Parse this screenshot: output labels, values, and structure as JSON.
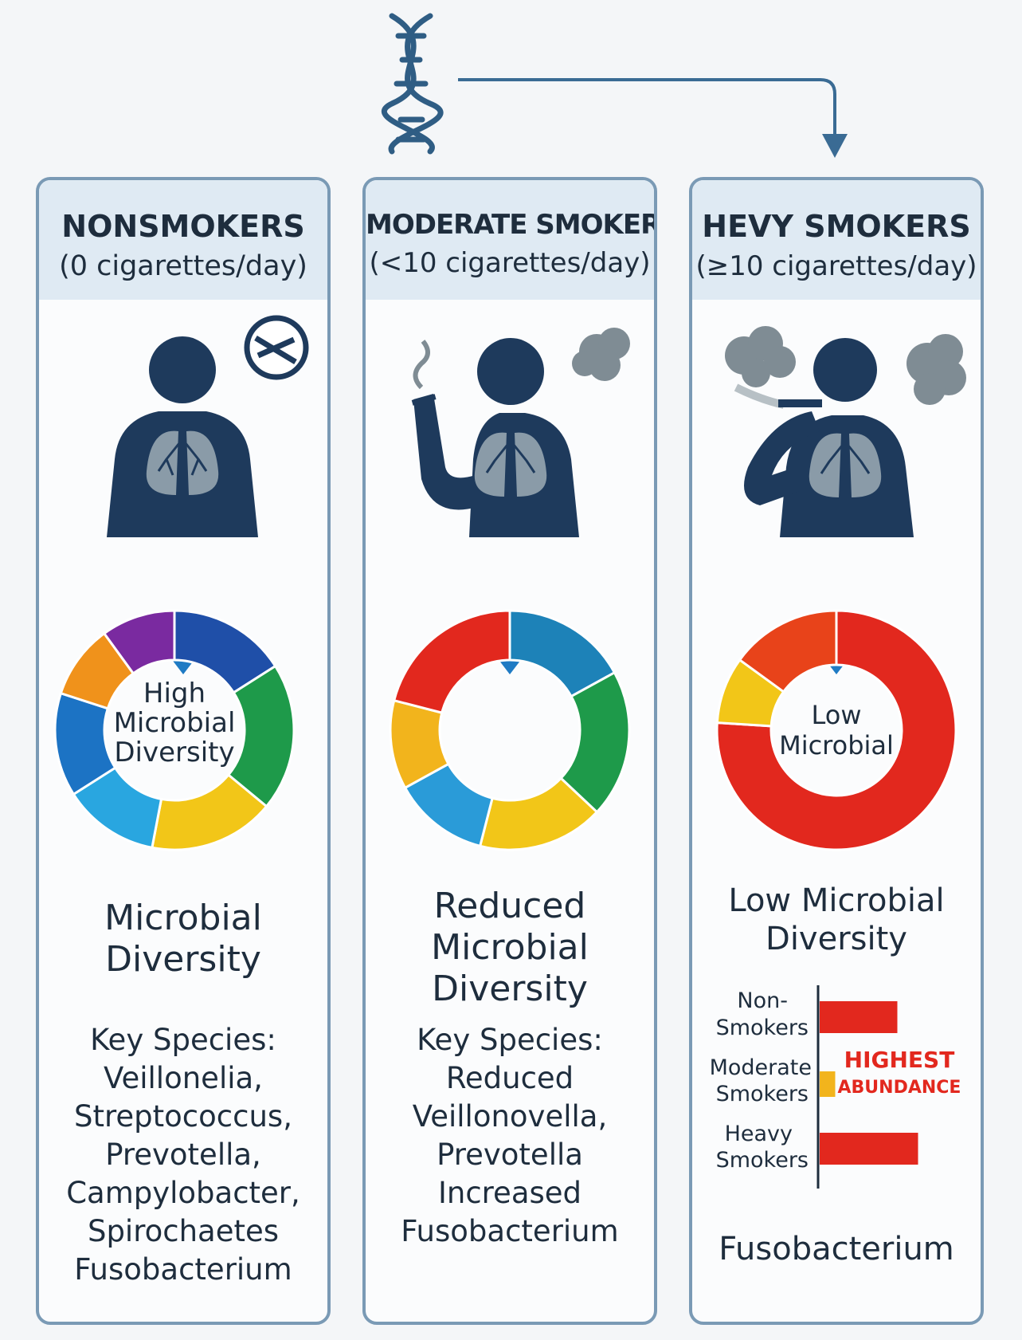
{
  "panels": [
    {
      "title": "NONSMOKERS",
      "subtitle": "(0 cigarettes/day)",
      "donut_center": [
        "High",
        "Microbial",
        "Diversity"
      ],
      "caption": [
        "Microbial",
        "Diversity"
      ],
      "species_title": "Key Species:",
      "species": [
        "Veillonelia,",
        "Streptococcus,",
        "Prevotella,",
        "Campylobacter,",
        "Spirochaetes",
        "Fusobacterium"
      ],
      "segments": [
        {
          "color": "#1f4fa8",
          "value": 16
        },
        {
          "color": "#1e9a4a",
          "value": 20
        },
        {
          "color": "#f2c618",
          "value": 17
        },
        {
          "color": "#29a6e0",
          "value": 13
        },
        {
          "color": "#1c73c4",
          "value": 14
        },
        {
          "color": "#f0921b",
          "value": 10
        },
        {
          "color": "#7a2aa0",
          "value": 10
        }
      ]
    },
    {
      "title": "MODERATE SMOKERS",
      "subtitle": "(<10 cigarettes/day)",
      "donut_center": [],
      "caption": [
        "Reduced",
        "Microbial",
        "Diversity"
      ],
      "species_title": "Key Species:",
      "species": [
        "Reduced",
        "Veillonovella,",
        "Prevotella",
        "Increased",
        "Fusobacterium"
      ],
      "segments": [
        {
          "color": "#1d82b8",
          "value": 17
        },
        {
          "color": "#1e9a4a",
          "value": 20
        },
        {
          "color": "#f2c618",
          "value": 17
        },
        {
          "color": "#2a9bd8",
          "value": 13
        },
        {
          "color": "#f2b41c",
          "value": 12
        },
        {
          "color": "#e2281e",
          "value": 21
        }
      ]
    },
    {
      "title": "HEVY SMOKERS",
      "subtitle": "(≥10 cigarettes/day)",
      "donut_center": [
        "Low",
        "Microbial"
      ],
      "caption": [
        "Low Microbial",
        "Diversity"
      ],
      "segments": [
        {
          "color": "#e2281e",
          "value": 76
        },
        {
          "color": "#f2c618",
          "value": 9
        },
        {
          "color": "#e8431a",
          "value": 15
        }
      ],
      "bar_chart": {
        "categories": [
          [
            "Non-",
            "Smokers"
          ],
          [
            "Moderate",
            "Smokers"
          ],
          [
            "Heavy",
            "Smokers"
          ]
        ],
        "values": [
          0.75,
          0.15,
          0.95
        ],
        "colors": [
          "#e2281e",
          "#f2b41c",
          "#e2281e"
        ],
        "annotation": [
          "HIGHEST",
          "ABUNDANCE"
        ],
        "annotation_color": "#e2281e",
        "xlabel": "Fusobacterium"
      }
    }
  ],
  "colors": {
    "navy": "#1e3a5c",
    "lung": "#8a9ba8",
    "arrow": "#1f7bc4",
    "smoke": "#7f8c94",
    "frame": "#7a9ab5"
  },
  "icons": [
    "dna-icon",
    "no-smoking-icon",
    "person-icon",
    "lungs-icon",
    "smoke-cloud-icon",
    "cigarette-icon",
    "down-arrow-icon"
  ]
}
